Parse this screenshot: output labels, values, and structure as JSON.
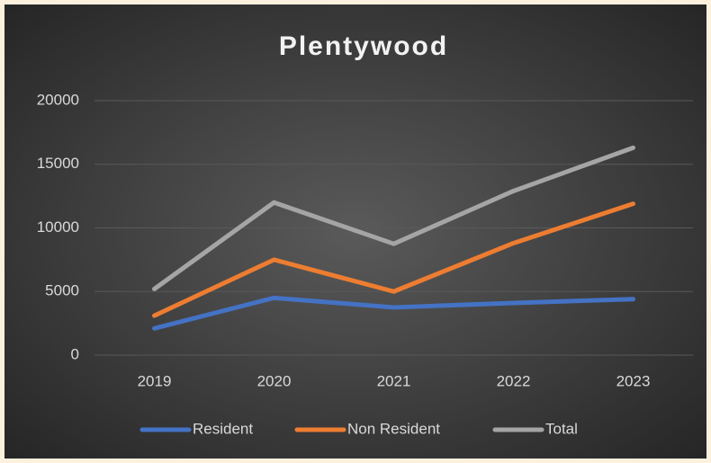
{
  "chart_data": {
    "type": "line",
    "title": "Plentywood",
    "categories": [
      "2019",
      "2020",
      "2021",
      "2022",
      "2023"
    ],
    "series": [
      {
        "name": "Resident",
        "color": "#4472c4",
        "values": [
          2100,
          4500,
          3750,
          4100,
          4400
        ]
      },
      {
        "name": "Non Resident",
        "color": "#ed7d31",
        "values": [
          3100,
          7500,
          5000,
          8800,
          11900
        ]
      },
      {
        "name": "Total",
        "color": "#a5a5a5",
        "values": [
          5200,
          12000,
          8750,
          12900,
          16300
        ]
      }
    ],
    "ylim": [
      0,
      20000
    ],
    "yticks": [
      0,
      5000,
      10000,
      15000,
      20000
    ],
    "grid": true,
    "legend": "bottom"
  }
}
